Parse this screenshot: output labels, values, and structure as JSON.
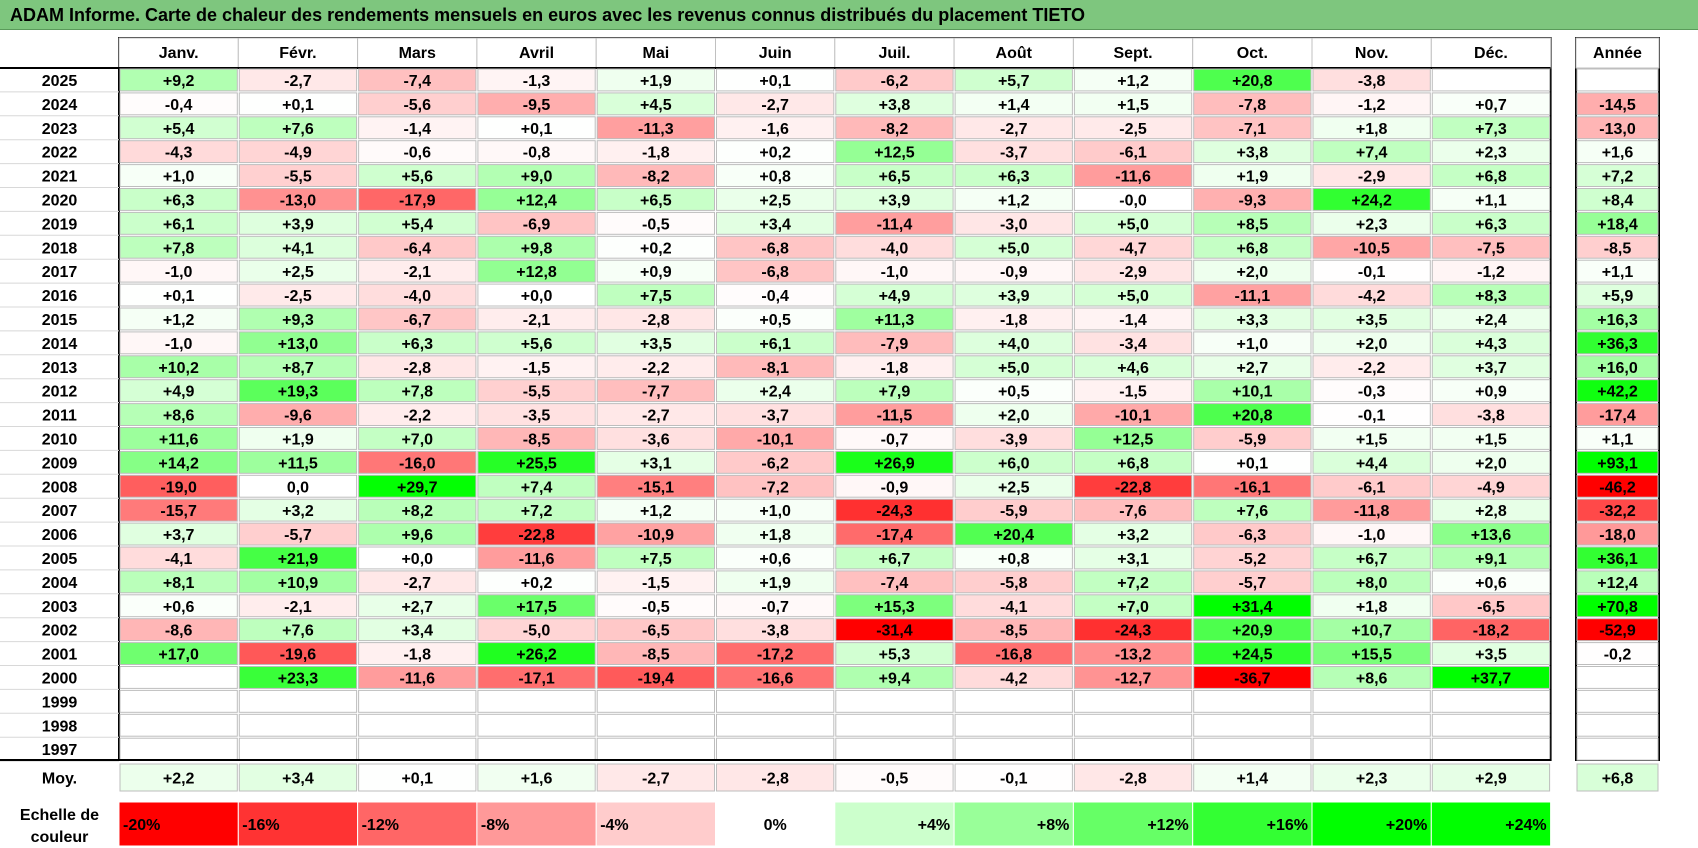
{
  "title": "ADAM Informe. Carte de chaleur des rendements mensuels en euros avec les revenus connus distribués du placement TIETO",
  "chart_data": {
    "type": "heatmap",
    "title": "ADAM Informe. Carte de chaleur des rendements mensuels en euros avec les revenus connus distribués du placement TIETO",
    "months": [
      "Janv.",
      "Févr.",
      "Mars",
      "Avril",
      "Mai",
      "Juin",
      "Juil.",
      "Août",
      "Sept.",
      "Oct.",
      "Nov.",
      "Déc."
    ],
    "year_header": "Année",
    "years": [
      "2025",
      "2024",
      "2023",
      "2022",
      "2021",
      "2020",
      "2019",
      "2018",
      "2017",
      "2016",
      "2015",
      "2014",
      "2013",
      "2012",
      "2011",
      "2010",
      "2009",
      "2008",
      "2007",
      "2006",
      "2005",
      "2004",
      "2003",
      "2002",
      "2001",
      "2000",
      "1999",
      "1998",
      "1997"
    ],
    "values": [
      [
        "+9,2",
        "-2,7",
        "-7,4",
        "-1,3",
        "+1,9",
        "+0,1",
        "-6,2",
        "+5,7",
        "+1,2",
        "+20,8",
        "-3,8",
        ""
      ],
      [
        "-0,4",
        "+0,1",
        "-5,6",
        "-9,5",
        "+4,5",
        "-2,7",
        "+3,8",
        "+1,4",
        "+1,5",
        "-7,8",
        "-1,2",
        "+0,7"
      ],
      [
        "+5,4",
        "+7,6",
        "-1,4",
        "+0,1",
        "-11,3",
        "-1,6",
        "-8,2",
        "-2,7",
        "-2,5",
        "-7,1",
        "+1,8",
        "+7,3"
      ],
      [
        "-4,3",
        "-4,9",
        "-0,6",
        "-0,8",
        "-1,8",
        "+0,2",
        "+12,5",
        "-3,7",
        "-6,1",
        "+3,8",
        "+7,4",
        "+2,3"
      ],
      [
        "+1,0",
        "-5,5",
        "+5,6",
        "+9,0",
        "-8,2",
        "+0,8",
        "+6,5",
        "+6,3",
        "-11,6",
        "+1,9",
        "-2,9",
        "+6,8"
      ],
      [
        "+6,3",
        "-13,0",
        "-17,9",
        "+12,4",
        "+6,5",
        "+2,5",
        "+3,9",
        "+1,2",
        "-0,0",
        "-9,3",
        "+24,2",
        "+1,1"
      ],
      [
        "+6,1",
        "+3,9",
        "+5,4",
        "-6,9",
        "-0,5",
        "+3,4",
        "-11,4",
        "-3,0",
        "+5,0",
        "+8,5",
        "+2,3",
        "+6,3"
      ],
      [
        "+7,8",
        "+4,1",
        "-6,4",
        "+9,8",
        "+0,2",
        "-6,8",
        "-4,0",
        "+5,0",
        "-4,7",
        "+6,8",
        "-10,5",
        "-7,5"
      ],
      [
        "-1,0",
        "+2,5",
        "-2,1",
        "+12,8",
        "+0,9",
        "-6,8",
        "-1,0",
        "-0,9",
        "-2,9",
        "+2,0",
        "-0,1",
        "-1,2"
      ],
      [
        "+0,1",
        "-2,5",
        "-4,0",
        "+0,0",
        "+7,5",
        "-0,4",
        "+4,9",
        "+3,9",
        "+5,0",
        "-11,1",
        "-4,2",
        "+8,3"
      ],
      [
        "+1,2",
        "+9,3",
        "-6,7",
        "-2,1",
        "-2,8",
        "+0,5",
        "+11,3",
        "-1,8",
        "-1,4",
        "+3,3",
        "+3,5",
        "+2,4"
      ],
      [
        "-1,0",
        "+13,0",
        "+6,3",
        "+5,6",
        "+3,5",
        "+6,1",
        "-7,9",
        "+4,0",
        "-3,4",
        "+1,0",
        "+2,0",
        "+4,3"
      ],
      [
        "+10,2",
        "+8,7",
        "-2,8",
        "-1,5",
        "-2,2",
        "-8,1",
        "-1,8",
        "+5,0",
        "+4,6",
        "+2,7",
        "-2,2",
        "+3,7"
      ],
      [
        "+4,9",
        "+19,3",
        "+7,8",
        "-5,5",
        "-7,7",
        "+2,4",
        "+7,9",
        "+0,5",
        "-1,5",
        "+10,1",
        "-0,3",
        "+0,9"
      ],
      [
        "+8,6",
        "-9,6",
        "-2,2",
        "-3,5",
        "-2,7",
        "-3,7",
        "-11,5",
        "+2,0",
        "-10,1",
        "+20,8",
        "-0,1",
        "-3,8"
      ],
      [
        "+11,6",
        "+1,9",
        "+7,0",
        "-8,5",
        "-3,6",
        "-10,1",
        "-0,7",
        "-3,9",
        "+12,5",
        "-5,9",
        "+1,5",
        "+1,5"
      ],
      [
        "+14,2",
        "+11,5",
        "-16,0",
        "+25,5",
        "+3,1",
        "-6,2",
        "+26,9",
        "+6,0",
        "+6,8",
        "+0,1",
        "+4,4",
        "+2,0"
      ],
      [
        "-19,0",
        "0,0",
        "+29,7",
        "+7,4",
        "-15,1",
        "-7,2",
        "-0,9",
        "+2,5",
        "-22,8",
        "-16,1",
        "-6,1",
        "-4,9"
      ],
      [
        "-15,7",
        "+3,2",
        "+8,2",
        "+7,2",
        "+1,2",
        "+1,0",
        "-24,3",
        "-5,9",
        "-7,6",
        "+7,6",
        "-11,8",
        "+2,8"
      ],
      [
        "+3,7",
        "-5,7",
        "+9,6",
        "-22,8",
        "-10,9",
        "+1,8",
        "-17,4",
        "+20,4",
        "+3,2",
        "-6,3",
        "-1,0",
        "+13,6"
      ],
      [
        "-4,1",
        "+21,9",
        "+0,0",
        "-11,6",
        "+7,5",
        "+0,6",
        "+6,7",
        "+0,8",
        "+3,1",
        "-5,2",
        "+6,7",
        "+9,1"
      ],
      [
        "+8,1",
        "+10,9",
        "-2,7",
        "+0,2",
        "-1,5",
        "+1,9",
        "-7,4",
        "-5,8",
        "+7,2",
        "-5,7",
        "+8,0",
        "+0,6"
      ],
      [
        "+0,6",
        "-2,1",
        "+2,7",
        "+17,5",
        "-0,5",
        "-0,7",
        "+15,3",
        "-4,1",
        "+7,0",
        "+31,4",
        "+1,8",
        "-6,5"
      ],
      [
        "-8,6",
        "+7,6",
        "+3,4",
        "-5,0",
        "-6,5",
        "-3,8",
        "-31,4",
        "-8,5",
        "-24,3",
        "+20,9",
        "+10,7",
        "-18,2"
      ],
      [
        "+17,0",
        "-19,6",
        "-1,8",
        "+26,2",
        "-8,5",
        "-17,2",
        "+5,3",
        "-16,8",
        "-13,2",
        "+24,5",
        "+15,5",
        "+3,5"
      ],
      [
        "",
        "+23,3",
        "-11,6",
        "-17,1",
        "-19,4",
        "-16,6",
        "+9,4",
        "-4,2",
        "-12,7",
        "-36,7",
        "+8,6",
        "+37,7"
      ],
      [
        "",
        "",
        "",
        "",
        "",
        "",
        "",
        "",
        "",
        "",
        "",
        ""
      ],
      [
        "",
        "",
        "",
        "",
        "",
        "",
        "",
        "",
        "",
        "",
        "",
        ""
      ],
      [
        "",
        "",
        "",
        "",
        "",
        "",
        "",
        "",
        "",
        "",
        "",
        ""
      ]
    ],
    "annual": [
      "",
      "-14,5",
      "-13,0",
      "+1,6",
      "+7,2",
      "+8,4",
      "+18,4",
      "-8,5",
      "+1,1",
      "+5,9",
      "+16,3",
      "+36,3",
      "+16,0",
      "+42,2",
      "-17,4",
      "+1,1",
      "+93,1",
      "-46,2",
      "-32,2",
      "-18,0",
      "+36,1",
      "+12,4",
      "+70,8",
      "-52,9",
      "-0,2",
      "",
      "",
      "",
      ""
    ],
    "average_label": "Moy.",
    "averages": [
      "+2,2",
      "+3,4",
      "+0,1",
      "+1,6",
      "-2,7",
      "-2,8",
      "-0,5",
      "-0,1",
      "-2,8",
      "+1,4",
      "+2,3",
      "+2,9"
    ],
    "average_annual": "+6,8",
    "scale_label": [
      "Echelle de",
      "couleur"
    ],
    "scale": [
      "-20%",
      "-16%",
      "-12%",
      "-8%",
      "-4%",
      "0%",
      "+4%",
      "+8%",
      "+12%",
      "+16%",
      "+20%",
      "+24%"
    ],
    "colors": {
      "negative": "#ff0000",
      "positive": "#00ff00",
      "neutral": "#ffffff",
      "title_bar": "#7ec67e"
    }
  }
}
